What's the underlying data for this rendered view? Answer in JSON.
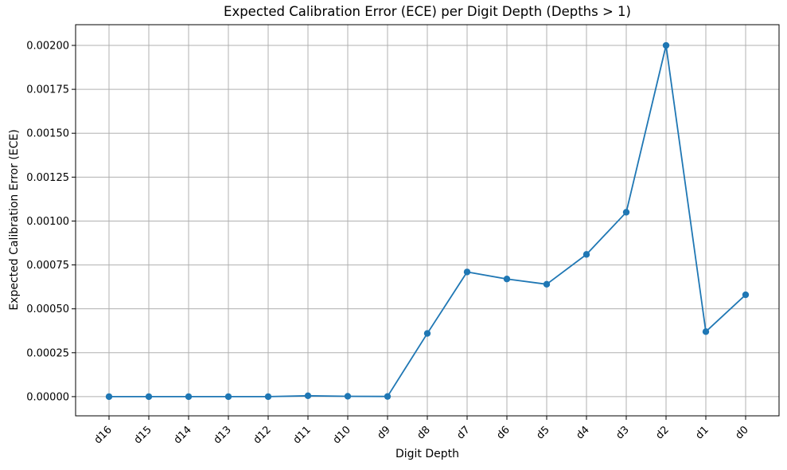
{
  "figure": {
    "background": "#ffffff"
  },
  "chart_data": {
    "type": "line",
    "title": "Expected Calibration Error (ECE) per Digit Depth (Depths > 1)",
    "xlabel": "Digit Depth",
    "ylabel": "Expected Calibration Error (ECE)",
    "categories": [
      "d16",
      "d15",
      "d14",
      "d13",
      "d12",
      "d11",
      "d10",
      "d9",
      "d8",
      "d7",
      "d6",
      "d5",
      "d4",
      "d3",
      "d2",
      "d1",
      "d0"
    ],
    "values": [
      0.0,
      0.0,
      0.0,
      0.0,
      0.0,
      5e-06,
      2e-06,
      1e-06,
      0.00036,
      0.00071,
      0.00067,
      0.00064,
      0.00081,
      0.00105,
      0.002,
      0.00037,
      0.00058
    ],
    "yticks": [
      0.0,
      0.00025,
      0.0005,
      0.00075,
      0.001,
      0.00125,
      0.0015,
      0.00175,
      0.002
    ],
    "ytick_decimals": 5,
    "ylim": [
      -0.0001093,
      0.002118
    ],
    "xtick_rotation_deg": 45,
    "grid": true,
    "line_color": "#1f77b4",
    "marker": "circle",
    "grid_color": "#b0b0b0",
    "spine_color": "#000000",
    "tick_color": "#000000",
    "text_color": "#000000"
  }
}
